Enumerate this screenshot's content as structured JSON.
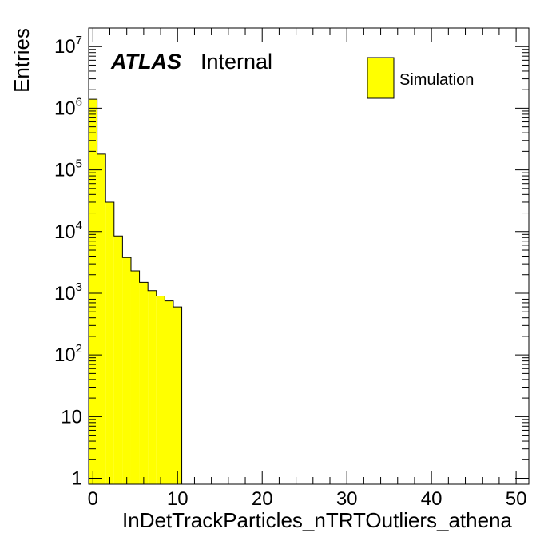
{
  "chart_data": {
    "type": "bar",
    "histogram": true,
    "xlabel": "InDetTrackParticles_nTRTOutliers_athena",
    "ylabel": "Entries",
    "xlim": [
      -0.5,
      51.5
    ],
    "ylim": [
      0.8,
      20000000
    ],
    "yscale": "log",
    "bin_width": 1,
    "x_ticks": [
      {
        "v": 0,
        "label": "0"
      },
      {
        "v": 10,
        "label": "10"
      },
      {
        "v": 20,
        "label": "20"
      },
      {
        "v": 30,
        "label": "30"
      },
      {
        "v": 40,
        "label": "40"
      },
      {
        "v": 50,
        "label": "50"
      }
    ],
    "y_ticks": [
      {
        "v": 1,
        "base": "1",
        "exp": ""
      },
      {
        "v": 10,
        "base": "10",
        "exp": ""
      },
      {
        "v": 100,
        "base": "10",
        "exp": "2"
      },
      {
        "v": 1000,
        "base": "10",
        "exp": "3"
      },
      {
        "v": 10000,
        "base": "10",
        "exp": "4"
      },
      {
        "v": 100000,
        "base": "10",
        "exp": "5"
      },
      {
        "v": 1000000,
        "base": "10",
        "exp": "6"
      },
      {
        "v": 10000000,
        "base": "10",
        "exp": "7"
      }
    ],
    "series": [
      {
        "name": "Simulation",
        "color": "#ffff00",
        "bin_low_edges": [
          -0.5,
          0.5,
          1.5,
          2.5,
          3.5,
          4.5,
          5.5,
          6.5,
          7.5,
          8.5,
          9.5
        ],
        "values": [
          1400000,
          180000,
          30000,
          8500,
          3800,
          2300,
          1500,
          1100,
          900,
          750,
          600
        ]
      }
    ],
    "annotations": {
      "experiment": "ATLAS",
      "status": "Internal"
    },
    "legend_placement": "top-right",
    "grid": false
  }
}
